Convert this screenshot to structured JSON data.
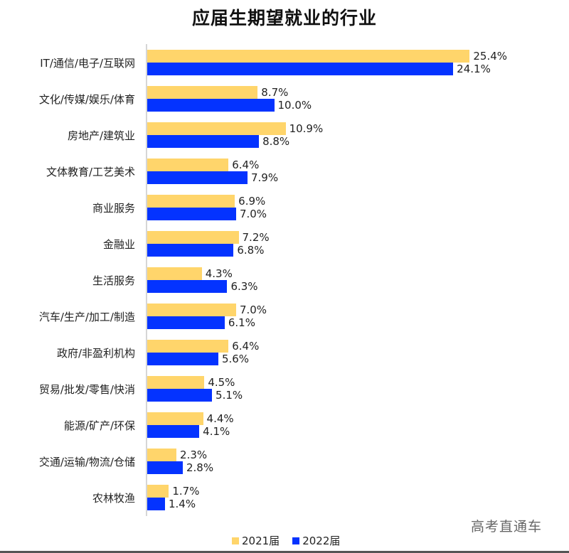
{
  "chart_data": {
    "type": "bar",
    "orientation": "horizontal",
    "title": "应届生期望就业的行业",
    "xlabel": "",
    "ylabel": "",
    "grid": false,
    "legend_position": "bottom",
    "categories": [
      "IT/通信/电子/互联网",
      "文化/传媒/娱乐/体育",
      "房地产/建筑业",
      "文体教育/工艺美术",
      "商业服务",
      "金融业",
      "生活服务",
      "汽车/生产/加工/制造",
      "政府/非盈利机构",
      "贸易/批发/零售/快消",
      "能源/矿产/环保",
      "交通/运输/物流/仓储",
      "农林牧渔"
    ],
    "series": [
      {
        "name": "2021届",
        "color": "#ffd56b",
        "values": [
          25.4,
          8.7,
          10.9,
          6.4,
          6.9,
          7.2,
          4.3,
          7.0,
          6.4,
          4.5,
          4.4,
          2.3,
          1.7
        ],
        "labels": [
          "25.4%",
          "8.7%",
          "10.9%",
          "6.4%",
          "6.9%",
          "7.2%",
          "4.3%",
          "7.0%",
          "6.4%",
          "4.5%",
          "4.4%",
          "2.3%",
          "1.7%"
        ]
      },
      {
        "name": "2022届",
        "color": "#0433ff",
        "values": [
          24.1,
          10.0,
          8.8,
          7.9,
          7.0,
          6.8,
          6.3,
          6.1,
          5.6,
          5.1,
          4.1,
          2.8,
          1.4
        ],
        "labels": [
          "24.1%",
          "10.0%",
          "8.8%",
          "7.9%",
          "7.0%",
          "6.8%",
          "6.3%",
          "6.1%",
          "5.6%",
          "5.1%",
          "4.1%",
          "2.8%",
          "1.4%"
        ]
      }
    ],
    "unit": "%"
  },
  "legend": {
    "s1": "2021届",
    "s2": "2022届"
  },
  "watermark": "高考直通车"
}
